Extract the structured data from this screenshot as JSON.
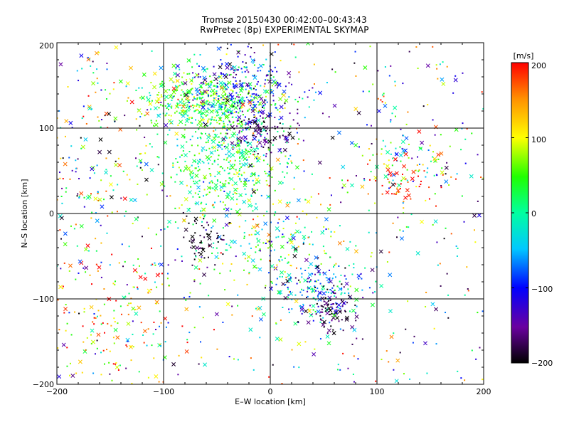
{
  "chart_data": {
    "type": "scatter",
    "title": "Tromsø 20150430 00:42:00–00:43:43",
    "subtitle": "RwPretec (8p) EXPERIMENTAL SKYMAP",
    "xlabel": "E–W location [km]",
    "ylabel": "N–S location [km]",
    "xlim": [
      -200,
      200
    ],
    "ylim": [
      -200,
      200
    ],
    "xticks": [
      "−200",
      "−100",
      "0",
      "100",
      "200"
    ],
    "yticks": [
      "−200",
      "−100",
      "0",
      "100",
      "200"
    ],
    "grid": true,
    "colorbar": {
      "label": "[m/s]",
      "range": [
        -200,
        200
      ],
      "ticks": [
        "200",
        "100",
        "0",
        "−100",
        "−200"
      ],
      "colormap": "black-purple-blue-cyan-green-yellow-red"
    },
    "markers": [
      "dot",
      "x"
    ],
    "clusters": [
      {
        "cx": -60,
        "cy": 130,
        "sx": 30,
        "sy": 18,
        "n": 460,
        "v": 40,
        "vs": 45
      },
      {
        "cx": -40,
        "cy": 55,
        "sx": 28,
        "sy": 30,
        "n": 420,
        "v": 20,
        "vs": 45
      },
      {
        "cx": -30,
        "cy": 150,
        "sx": 25,
        "sy": 20,
        "n": 220,
        "v": -120,
        "vs": 50
      },
      {
        "cx": -10,
        "cy": 95,
        "sx": 18,
        "sy": 12,
        "n": 120,
        "v": -160,
        "vs": 40
      },
      {
        "cx": 45,
        "cy": -90,
        "sx": 22,
        "sy": 18,
        "n": 180,
        "v": -60,
        "vs": 70
      },
      {
        "cx": 60,
        "cy": -115,
        "sx": 10,
        "sy": 14,
        "n": 80,
        "v": -180,
        "vs": 20
      },
      {
        "cx": 0,
        "cy": -40,
        "sx": 40,
        "sy": 25,
        "n": 160,
        "v": 40,
        "vs": 80
      },
      {
        "cx": 130,
        "cy": 65,
        "sx": 22,
        "sy": 20,
        "n": 90,
        "v": 20,
        "vs": 100
      },
      {
        "cx": 130,
        "cy": 35,
        "sx": 25,
        "sy": 12,
        "n": 45,
        "v": 190,
        "vs": 15
      },
      {
        "cx": -60,
        "cy": -30,
        "sx": 12,
        "sy": 14,
        "n": 60,
        "v": -190,
        "vs": 15
      },
      {
        "cx": -150,
        "cy": -110,
        "sx": 40,
        "sy": 50,
        "n": 150,
        "v": 140,
        "vs": 100
      },
      {
        "cx": -170,
        "cy": 60,
        "sx": 30,
        "sy": 70,
        "n": 110,
        "v": -30,
        "vs": 150
      },
      {
        "cx": 0,
        "cy": 0,
        "sx": 200,
        "sy": 200,
        "n": 650,
        "v": 0,
        "vs": 200
      }
    ]
  }
}
